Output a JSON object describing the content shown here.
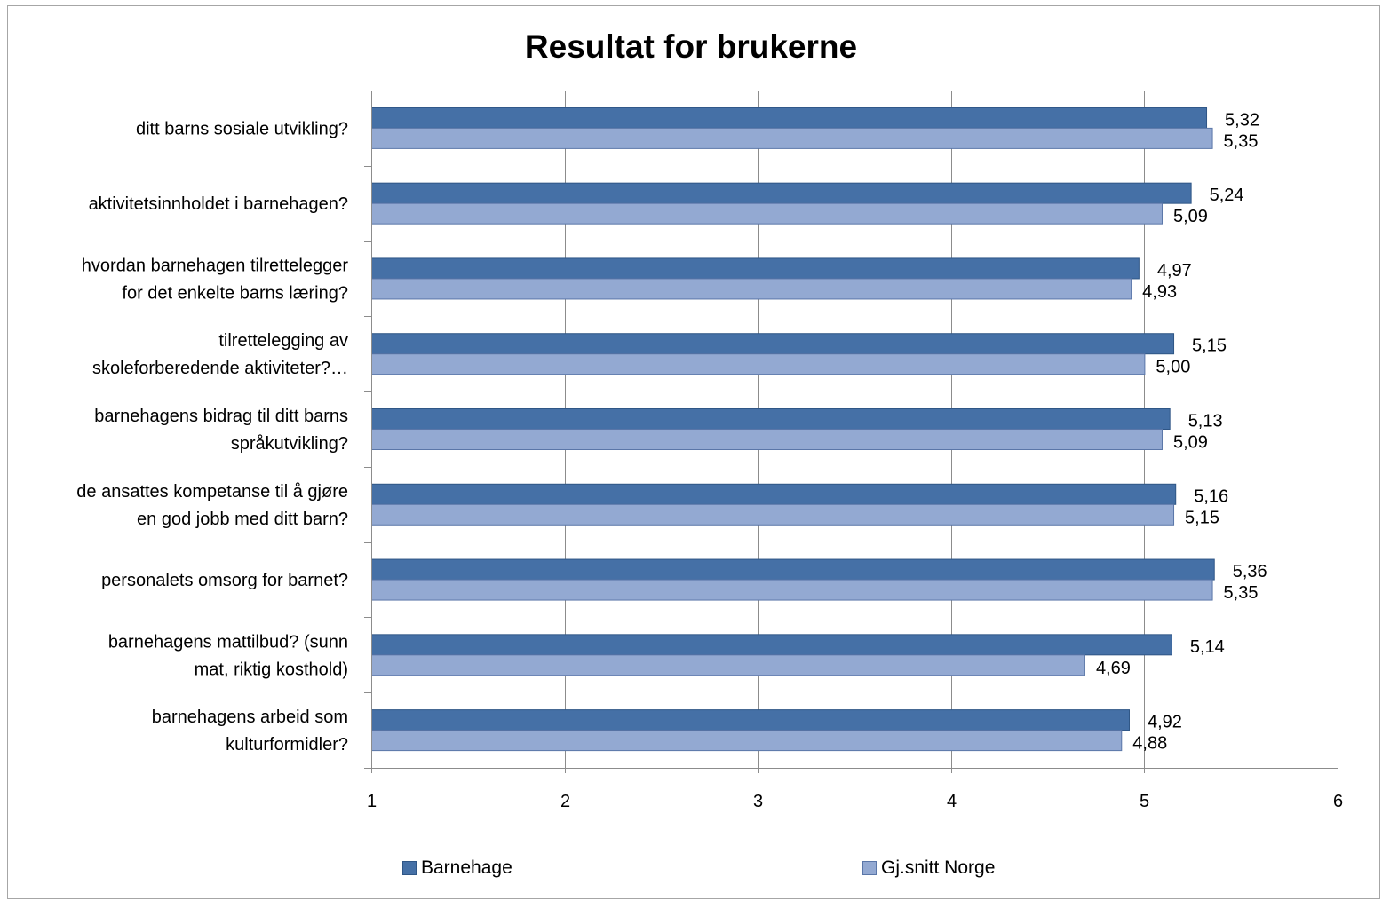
{
  "chart_data": {
    "type": "bar",
    "orientation": "horizontal",
    "title": "Resultat for brukerne",
    "categories": [
      "ditt barns sosiale utvikling?",
      "aktivitetsinnholdet i barnehagen?",
      "hvordan barnehagen tilrettelegger for det enkelte barns læring?",
      "tilrettelegging av skoleforberedende aktiviteter?…",
      "barnehagens bidrag til ditt barns språkutvikling?",
      "de ansattes kompetanse til å gjøre en god jobb med ditt barn?",
      "personalets omsorg for barnet?",
      "barnehagens mattilbud?  (sunn mat, riktig kosthold)",
      "barnehagens arbeid som kulturformidler?"
    ],
    "category_lines": [
      [
        "ditt barns sosiale utvikling?"
      ],
      [
        "aktivitetsinnholdet i barnehagen?"
      ],
      [
        "hvordan barnehagen tilrettelegger",
        "for det enkelte barns læring?"
      ],
      [
        "tilrettelegging av",
        "skoleforberedende aktiviteter?…"
      ],
      [
        "barnehagens bidrag til ditt barns",
        "språkutvikling?"
      ],
      [
        "de ansattes kompetanse til å gjøre",
        "en god jobb med ditt barn?"
      ],
      [
        "personalets omsorg for barnet?"
      ],
      [
        "barnehagens mattilbud?  (sunn",
        "mat, riktig kosthold)"
      ],
      [
        "barnehagens arbeid som",
        "kulturformidler?"
      ]
    ],
    "series": [
      {
        "name": "Barnehage",
        "color": "#4570a6",
        "values": [
          5.32,
          5.24,
          4.97,
          5.15,
          5.13,
          5.16,
          5.36,
          5.14,
          4.92
        ],
        "labels": [
          "5,32",
          "5,24",
          "4,97",
          "5,15",
          "5,13",
          "5,16",
          "5,36",
          "5,14",
          "4,92"
        ]
      },
      {
        "name": "Gj.snitt Norge",
        "color": "#93a9d2",
        "values": [
          5.35,
          5.09,
          4.93,
          5.0,
          5.09,
          5.15,
          5.35,
          4.69,
          4.88
        ],
        "labels": [
          "5,35",
          "5,09",
          "4,93",
          "5,00",
          "5,09",
          "5,15",
          "5,35",
          "4,69",
          "4,88"
        ]
      }
    ],
    "xlim": [
      1,
      6
    ],
    "xticks": [
      "1",
      "2",
      "3",
      "4",
      "5",
      "6"
    ],
    "grid": true,
    "legend": "bottom"
  }
}
